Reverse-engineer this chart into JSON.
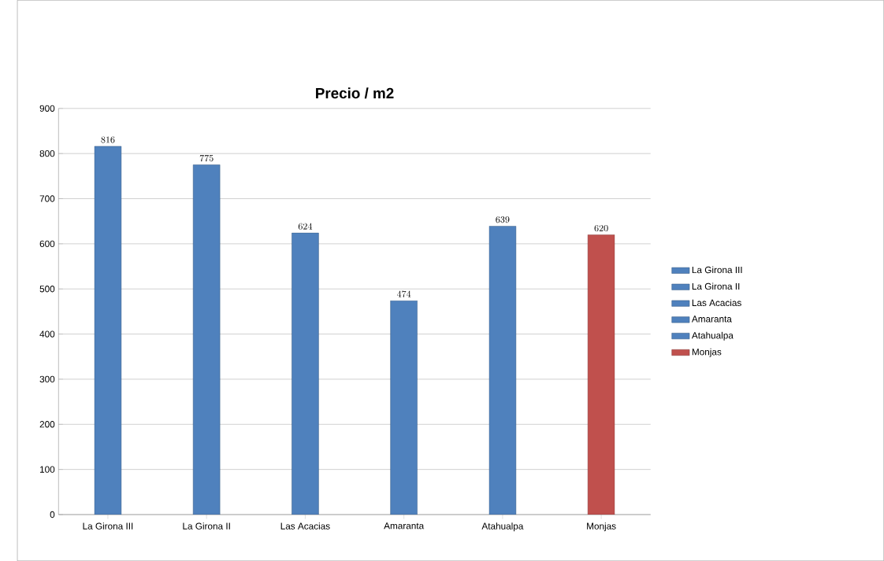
{
  "chart_data": {
    "type": "bar",
    "title": "Precio / m2",
    "categories": [
      "La Girona III",
      "La Girona II",
      "Las Acacias",
      "Amaranta",
      "Atahualpa",
      "Monjas"
    ],
    "series": [
      {
        "name": "La Girona III",
        "color": "#4f81bd",
        "values": [
          816,
          null,
          null,
          null,
          null,
          null
        ]
      },
      {
        "name": "La Girona II",
        "color": "#4f81bd",
        "values": [
          null,
          775,
          null,
          null,
          null,
          null
        ]
      },
      {
        "name": "Las Acacias",
        "color": "#4f81bd",
        "values": [
          null,
          null,
          624,
          null,
          null,
          null
        ]
      },
      {
        "name": "Amaranta",
        "color": "#4f81bd",
        "values": [
          null,
          null,
          null,
          474,
          null,
          null
        ]
      },
      {
        "name": "Atahualpa",
        "color": "#4f81bd",
        "values": [
          null,
          null,
          null,
          null,
          639,
          null
        ]
      },
      {
        "name": "Monjas",
        "color": "#c0504d",
        "values": [
          null,
          null,
          null,
          null,
          null,
          620
        ]
      }
    ],
    "ylim": [
      0,
      900
    ],
    "yticks": [
      0,
      100,
      200,
      300,
      400,
      500,
      600,
      700,
      800,
      900
    ],
    "grid": "y",
    "legend": "right",
    "data_labels": true
  }
}
